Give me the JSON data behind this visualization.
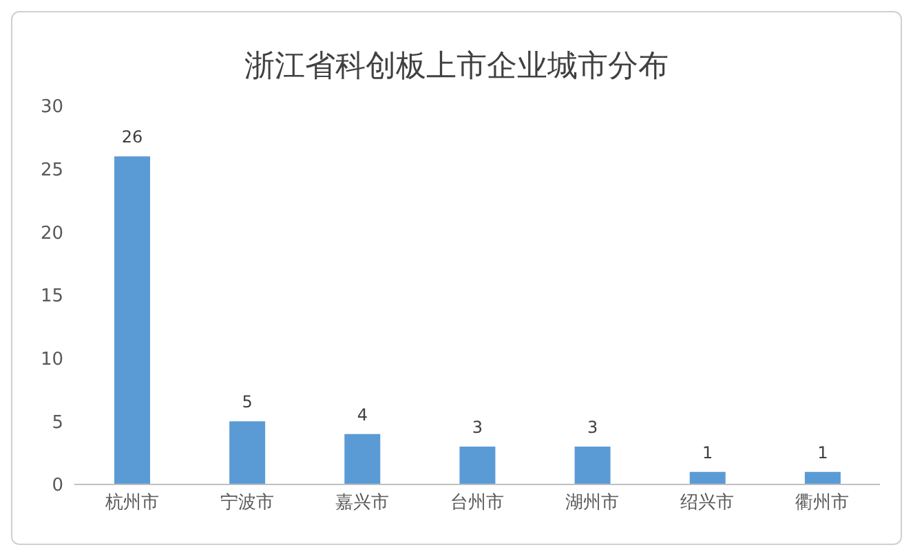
{
  "chart_data": {
    "type": "bar",
    "title": "浙江省科创板上市企业城市分布",
    "categories": [
      "杭州市",
      "宁波市",
      "嘉兴市",
      "台州市",
      "湖州市",
      "绍兴市",
      "衢州市"
    ],
    "values": [
      26,
      5,
      4,
      3,
      3,
      1,
      1
    ],
    "color": "#5b9bd5",
    "ylim": [
      0,
      30
    ],
    "yticks": [
      0,
      5,
      10,
      15,
      20,
      25,
      30
    ],
    "grid": false,
    "data_labels": true
  }
}
